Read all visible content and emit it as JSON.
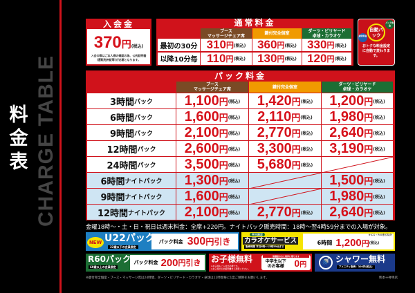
{
  "side": {
    "title": "料金表",
    "subtitle": "CHARGE TABLE"
  },
  "entrance": {
    "title": "入会金",
    "price": "370",
    "yen": "円",
    "tax": "(税込)",
    "note": "入会の際はご本人様の確認の為、公的証明書(運転免許証等)が必要となります。"
  },
  "regular": {
    "title": "通常料金",
    "columns": [
      "ブース\nマッサージチェア席",
      "鍵付完全個室",
      "ダーツ・ビリヤード\n卓球・カラオケ"
    ],
    "rows": [
      {
        "label": "最初の30分",
        "prices": [
          "310",
          "360",
          "330"
        ]
      },
      {
        "label": "以降10分毎",
        "prices": [
          "110",
          "130",
          "120"
        ]
      }
    ]
  },
  "auto_pack": {
    "title": "自動パック",
    "tag1": "パック料金",
    "tag2": "通常料金",
    "text": "おトクな料金設定に自動で変わります。"
  },
  "pack": {
    "title": "パック料金",
    "columns": [
      "ブース\nマッサージチェア席",
      "鍵付完全個室",
      "ダーツ・ビリヤード\n卓球・カラオケ"
    ],
    "rows": [
      {
        "hours": "3時間",
        "suffix": "パック",
        "night": false,
        "prices": [
          "1,100",
          "1,420",
          "1,200"
        ]
      },
      {
        "hours": "6時間",
        "suffix": "パック",
        "night": false,
        "prices": [
          "1,600",
          "2,110",
          "1,980"
        ]
      },
      {
        "hours": "9時間",
        "suffix": "パック",
        "night": false,
        "prices": [
          "2,100",
          "2,770",
          "2,640"
        ]
      },
      {
        "hours": "12時間",
        "suffix": "パック",
        "night": false,
        "prices": [
          "2,600",
          "3,300",
          "3,190"
        ]
      },
      {
        "hours": "24時間",
        "suffix": "パック",
        "night": false,
        "prices": [
          "3,500",
          "5,680",
          ""
        ]
      },
      {
        "hours": "6時間",
        "suffix": "ナイトパック",
        "night": true,
        "prices": [
          "1,300",
          "",
          "1,500"
        ]
      },
      {
        "hours": "9時間",
        "suffix": "ナイトパック",
        "night": true,
        "prices": [
          "1,600",
          "",
          "1,980"
        ]
      },
      {
        "hours": "12時間",
        "suffix": "ナイトパック",
        "night": true,
        "prices": [
          "2,100",
          "2,770",
          "2,640"
        ]
      }
    ]
  },
  "yen": "円",
  "tax": "(税込)",
  "notice": "金曜18時〜・土・日・祝日は週末料金：全席+220円。ナイトパック販売時間：18時〜翌4時59分までの入場が対象。",
  "promos": {
    "u22": {
      "badge": "NEW",
      "title": "U22パック",
      "sub": "22歳以下の会員限定",
      "label": "パック料金",
      "price": "300",
      "suffix": "引き"
    },
    "karaoke": {
      "tag": "平日限定",
      "title": "カラオケサービス",
      "sub": "販売時間 平日6時〜15時59分まで",
      "hours": "6時間",
      "price": "1,200",
      "note": "※U22・R60割引除外"
    },
    "r60": {
      "title": "R60パック",
      "sub": "60歳以上の会員限定",
      "label": "パック料金",
      "price": "200",
      "suffix": "引き"
    },
    "kids": {
      "title": "お子様無料",
      "tag": "保護者の方と同伴に限ります",
      "note": "※お子様もご入会が必要です。\n※お子様の公的証明書をご用意ください。",
      "label": "中学生以下\nのお客様",
      "price": "0"
    },
    "shower": {
      "title": "シャワー無料",
      "sub": "アメニティ販売：300円(税込)"
    }
  },
  "footnote": "※鍵付完全個室・ブース・マッサージ席は24時間、ダーツ・ビリヤード・カラオケ・卓球は12時間毎に1度ご精算をお願いします。",
  "store": "熊本十禅寺店",
  "colors": {
    "red": "#d0121b",
    "brown": "#7a4a25",
    "orange": "#f09a00",
    "green": "#1c6e34",
    "blue": "#1e7fc2",
    "yellow": "#f5e400",
    "navy": "#1b3a8a"
  }
}
